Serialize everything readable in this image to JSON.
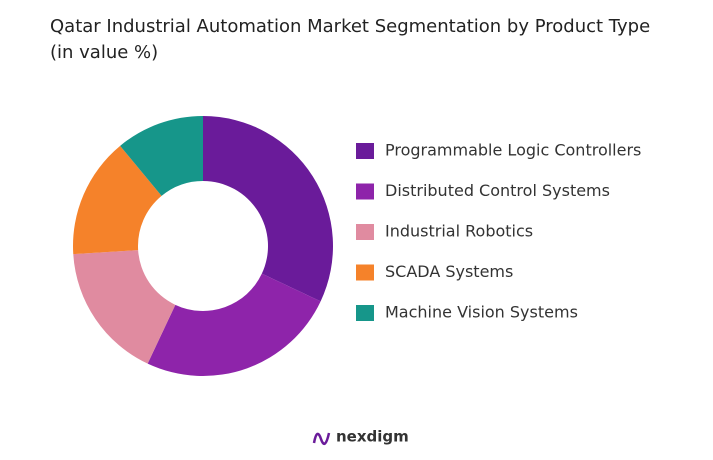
{
  "chart_data": {
    "type": "donut",
    "title": "Qatar Industrial Automation Market  Segmentation by Product Type (in value %)",
    "categories": [
      "Programmable Logic Controllers",
      "Distributed Control Systems",
      "Industrial Robotics",
      "SCADA Systems",
      "Machine Vision Systems"
    ],
    "values": [
      32,
      25,
      17,
      15,
      11
    ],
    "colors": [
      "#6a1b9a",
      "#8e24aa",
      "#e08ba0",
      "#f5822a",
      "#16968a"
    ],
    "legend": "right"
  },
  "brand": "nexdigm"
}
